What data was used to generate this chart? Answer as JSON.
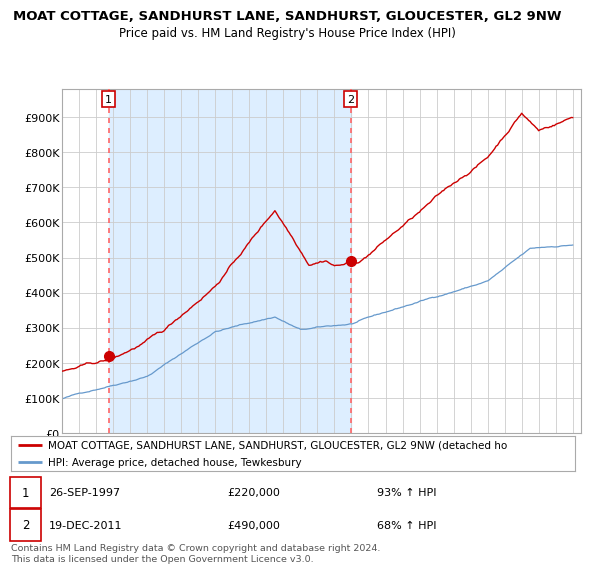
{
  "title_line1": "MOAT COTTAGE, SANDHURST LANE, SANDHURST, GLOUCESTER, GL2 9NW",
  "title_line2": "Price paid vs. HM Land Registry's House Price Index (HPI)",
  "ylim": [
    0,
    980000
  ],
  "yticks": [
    0,
    100000,
    200000,
    300000,
    400000,
    500000,
    600000,
    700000,
    800000,
    900000
  ],
  "ytick_labels": [
    "£0",
    "£100K",
    "£200K",
    "£300K",
    "£400K",
    "£500K",
    "£600K",
    "£700K",
    "£800K",
    "£900K"
  ],
  "xlim_start": 1995.0,
  "xlim_end": 2025.5,
  "sale1_date_x": 1997.73,
  "sale1_price": 220000,
  "sale2_date_x": 2011.96,
  "sale2_price": 490000,
  "legend_label_red": "MOAT COTTAGE, SANDHURST LANE, SANDHURST, GLOUCESTER, GL2 9NW (detached ho",
  "legend_label_blue": "HPI: Average price, detached house, Tewkesbury",
  "footer": "Contains HM Land Registry data © Crown copyright and database right 2024.\nThis data is licensed under the Open Government Licence v3.0.",
  "red_color": "#cc0000",
  "blue_color": "#6699cc",
  "fill_color": "#ddeeff",
  "marker_color": "#cc0000",
  "vline_color": "#ff6666",
  "background_color": "#ffffff",
  "grid_color": "#cccccc"
}
